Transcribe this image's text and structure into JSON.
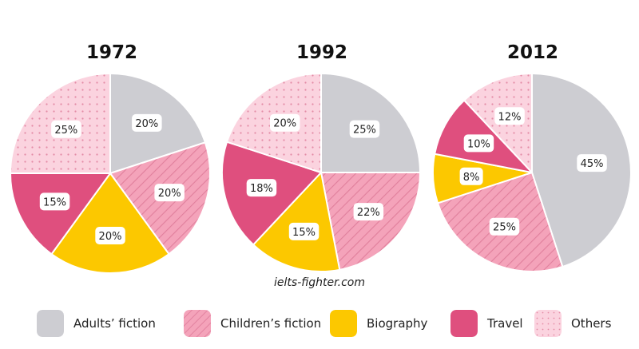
{
  "chart_data": [
    {
      "type": "pie",
      "title": "1972",
      "slices": [
        {
          "label": "Adults' fiction",
          "value": 20
        },
        {
          "label": "Children's fiction",
          "value": 20
        },
        {
          "label": "Biography",
          "value": 20
        },
        {
          "label": "Travel",
          "value": 15
        },
        {
          "label": "Others",
          "value": 25
        }
      ],
      "data_labels": [
        "20%",
        "20%",
        "20%",
        "15%",
        "25%"
      ]
    },
    {
      "type": "pie",
      "title": "1992",
      "slices": [
        {
          "label": "Adults' fiction",
          "value": 25
        },
        {
          "label": "Children's fiction",
          "value": 22
        },
        {
          "label": "Biography",
          "value": 15
        },
        {
          "label": "Travel",
          "value": 18
        },
        {
          "label": "Others",
          "value": 20
        }
      ],
      "data_labels": [
        "25%",
        "22%",
        "15%",
        "18%",
        "20%"
      ]
    },
    {
      "type": "pie",
      "title": "2012",
      "slices": [
        {
          "label": "Adults' fiction",
          "value": 45
        },
        {
          "label": "Children's fiction",
          "value": 25
        },
        {
          "label": "Biography",
          "value": 8
        },
        {
          "label": "Travel",
          "value": 10
        },
        {
          "label": "Others",
          "value": 12
        }
      ],
      "data_labels": [
        "45%",
        "25%",
        "8%",
        "10%",
        "12%"
      ]
    }
  ],
  "legend": [
    {
      "label": "Adults’ fiction",
      "color": "#cdcdd2",
      "pattern": "solid"
    },
    {
      "label": "Children’s fiction",
      "color": "#f4a3ba",
      "pattern": "hatch"
    },
    {
      "label": "Biography",
      "color": "#fcc800",
      "pattern": "solid"
    },
    {
      "label": "Travel",
      "color": "#df4f7e",
      "pattern": "solid"
    },
    {
      "label": "Others",
      "color": "#fbd3df",
      "pattern": "dots"
    }
  ],
  "watermark": "ielts-fighter.com"
}
